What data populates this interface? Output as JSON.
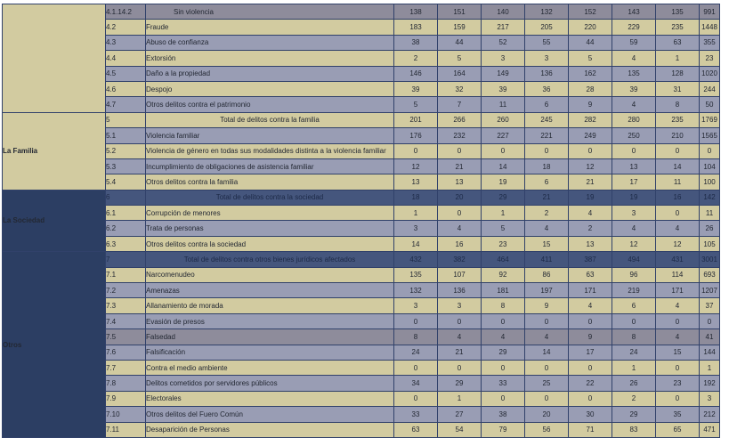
{
  "meta": {
    "language": "es",
    "content_kind": "crime-statistics-table",
    "visible_columns": [
      "category",
      "code",
      "description",
      "7 unlabeled numeric period columns",
      "row total"
    ]
  },
  "colors": {
    "row_tan": "#d2cba0",
    "row_lavender": "#999db4",
    "row_dark_highlight": "#8e8c9b",
    "row_total_blue": "#45567d",
    "sidebar_navy": "#2c3e63",
    "sidebar_tan": "#d2cba0",
    "border": "#31416a",
    "text_dark": "#232833",
    "sidebar_text": "#f8f8f2",
    "page_background": "#ffffff"
  },
  "table": {
    "categories": [
      {
        "label": "",
        "rowspan": 7,
        "style": "tan"
      },
      {
        "label": "La Familia",
        "rowspan": 5,
        "style": "tan"
      },
      {
        "label": "La Sociedad",
        "rowspan": 4,
        "style": "navy"
      },
      {
        "label": "Otros",
        "rowspan": 12,
        "style": "navy"
      }
    ],
    "rows": [
      {
        "code": "4.1.14.2",
        "label": "Sin violencia",
        "values": [
          138,
          151,
          140,
          132,
          152,
          143,
          135,
          991
        ],
        "style": "dark",
        "align": "indent"
      },
      {
        "code": "4.2",
        "label": "Fraude",
        "values": [
          183,
          159,
          217,
          205,
          220,
          229,
          235,
          1448
        ],
        "style": "tan",
        "align": "left"
      },
      {
        "code": "4.3",
        "label": "Abuso de confianza",
        "values": [
          38,
          44,
          52,
          55,
          44,
          59,
          63,
          355
        ],
        "style": "lav",
        "align": "left"
      },
      {
        "code": "4.4",
        "label": "Extorsión",
        "values": [
          2,
          5,
          3,
          3,
          5,
          4,
          1,
          23
        ],
        "style": "tan",
        "align": "left"
      },
      {
        "code": "4.5",
        "label": "Daño a la propiedad",
        "values": [
          146,
          164,
          149,
          136,
          162,
          135,
          128,
          1020
        ],
        "style": "lav",
        "align": "left"
      },
      {
        "code": "4.6",
        "label": "Despojo",
        "values": [
          39,
          32,
          39,
          36,
          28,
          39,
          31,
          244
        ],
        "style": "tan",
        "align": "left"
      },
      {
        "code": "4.7",
        "label": "Otros delitos contra el patrimonio",
        "values": [
          5,
          7,
          11,
          6,
          9,
          4,
          8,
          50
        ],
        "style": "lav",
        "align": "left"
      },
      {
        "code": "5",
        "label": "Total de delitos contra la familia",
        "values": [
          201,
          266,
          260,
          245,
          282,
          280,
          235,
          1769
        ],
        "style": "tan",
        "align": "center"
      },
      {
        "code": "5.1",
        "label": "Violencia familiar",
        "values": [
          176,
          232,
          227,
          221,
          249,
          250,
          210,
          1565
        ],
        "style": "lav",
        "align": "left"
      },
      {
        "code": "5.2",
        "label": "Violencia de género en todas sus modalidades distinta a la violencia familiar",
        "values": [
          0,
          0,
          0,
          0,
          0,
          0,
          0,
          0
        ],
        "style": "tan",
        "align": "left"
      },
      {
        "code": "5.3",
        "label": "Incumplimiento de obligaciones de asistencia familiar",
        "values": [
          12,
          21,
          14,
          18,
          12,
          13,
          14,
          104
        ],
        "style": "lav",
        "align": "left"
      },
      {
        "code": "5.4",
        "label": "Otros delitos contra la familia",
        "values": [
          13,
          13,
          19,
          6,
          21,
          17,
          11,
          100
        ],
        "style": "tan",
        "align": "left"
      },
      {
        "code": "6",
        "label": "Total de delitos contra la sociedad",
        "values": [
          18,
          20,
          29,
          21,
          19,
          19,
          16,
          142
        ],
        "style": "blue",
        "align": "center"
      },
      {
        "code": "6.1",
        "label": "Corrupción de menores",
        "values": [
          1,
          0,
          1,
          2,
          4,
          3,
          0,
          11
        ],
        "style": "tan",
        "align": "left"
      },
      {
        "code": "6.2",
        "label": "Trata de personas",
        "values": [
          3,
          4,
          5,
          4,
          2,
          4,
          4,
          26
        ],
        "style": "lav",
        "align": "left"
      },
      {
        "code": "6.3",
        "label": "Otros delitos contra la sociedad",
        "values": [
          14,
          16,
          23,
          15,
          13,
          12,
          12,
          105
        ],
        "style": "tan",
        "align": "left"
      },
      {
        "code": "7",
        "label": "Total de delitos contra otros bienes jurídicos afectados",
        "values": [
          432,
          382,
          464,
          411,
          387,
          494,
          431,
          3001
        ],
        "style": "blue",
        "align": "center"
      },
      {
        "code": "7.1",
        "label": "Narcomenudeo",
        "values": [
          135,
          107,
          92,
          86,
          63,
          96,
          114,
          693
        ],
        "style": "tan",
        "align": "left"
      },
      {
        "code": "7.2",
        "label": "Amenazas",
        "values": [
          132,
          136,
          181,
          197,
          171,
          219,
          171,
          1207
        ],
        "style": "lav",
        "align": "left"
      },
      {
        "code": "7.3",
        "label": "Allanamiento de morada",
        "values": [
          3,
          3,
          8,
          9,
          4,
          6,
          4,
          37
        ],
        "style": "tan",
        "align": "left"
      },
      {
        "code": "7.4",
        "label": "Evasión de presos",
        "values": [
          0,
          0,
          0,
          0,
          0,
          0,
          0,
          0
        ],
        "style": "lav",
        "align": "left"
      },
      {
        "code": "7.5",
        "label": "Falsedad",
        "values": [
          8,
          4,
          4,
          4,
          9,
          8,
          4,
          41
        ],
        "style": "dark",
        "align": "left"
      },
      {
        "code": "7.6",
        "label": "Falsificación",
        "values": [
          24,
          21,
          29,
          14,
          17,
          24,
          15,
          144
        ],
        "style": "lav",
        "align": "left"
      },
      {
        "code": "7.7",
        "label": "Contra el medio ambiente",
        "values": [
          0,
          0,
          0,
          0,
          0,
          1,
          0,
          1
        ],
        "style": "tan",
        "align": "left"
      },
      {
        "code": "7.8",
        "label": "Delitos cometidos por servidores públicos",
        "values": [
          34,
          29,
          33,
          25,
          22,
          26,
          23,
          192
        ],
        "style": "lav",
        "align": "left"
      },
      {
        "code": "7.9",
        "label": "Electorales",
        "values": [
          0,
          1,
          0,
          0,
          0,
          2,
          0,
          3
        ],
        "style": "tan",
        "align": "left"
      },
      {
        "code": "7.10",
        "label": "Otros delitos del Fuero Común",
        "values": [
          33,
          27,
          38,
          20,
          30,
          29,
          35,
          212
        ],
        "style": "lav",
        "align": "left"
      },
      {
        "code": "7.11",
        "label": "Desaparición de Personas",
        "values": [
          63,
          54,
          79,
          56,
          71,
          83,
          65,
          471
        ],
        "style": "tan",
        "align": "left"
      }
    ]
  }
}
